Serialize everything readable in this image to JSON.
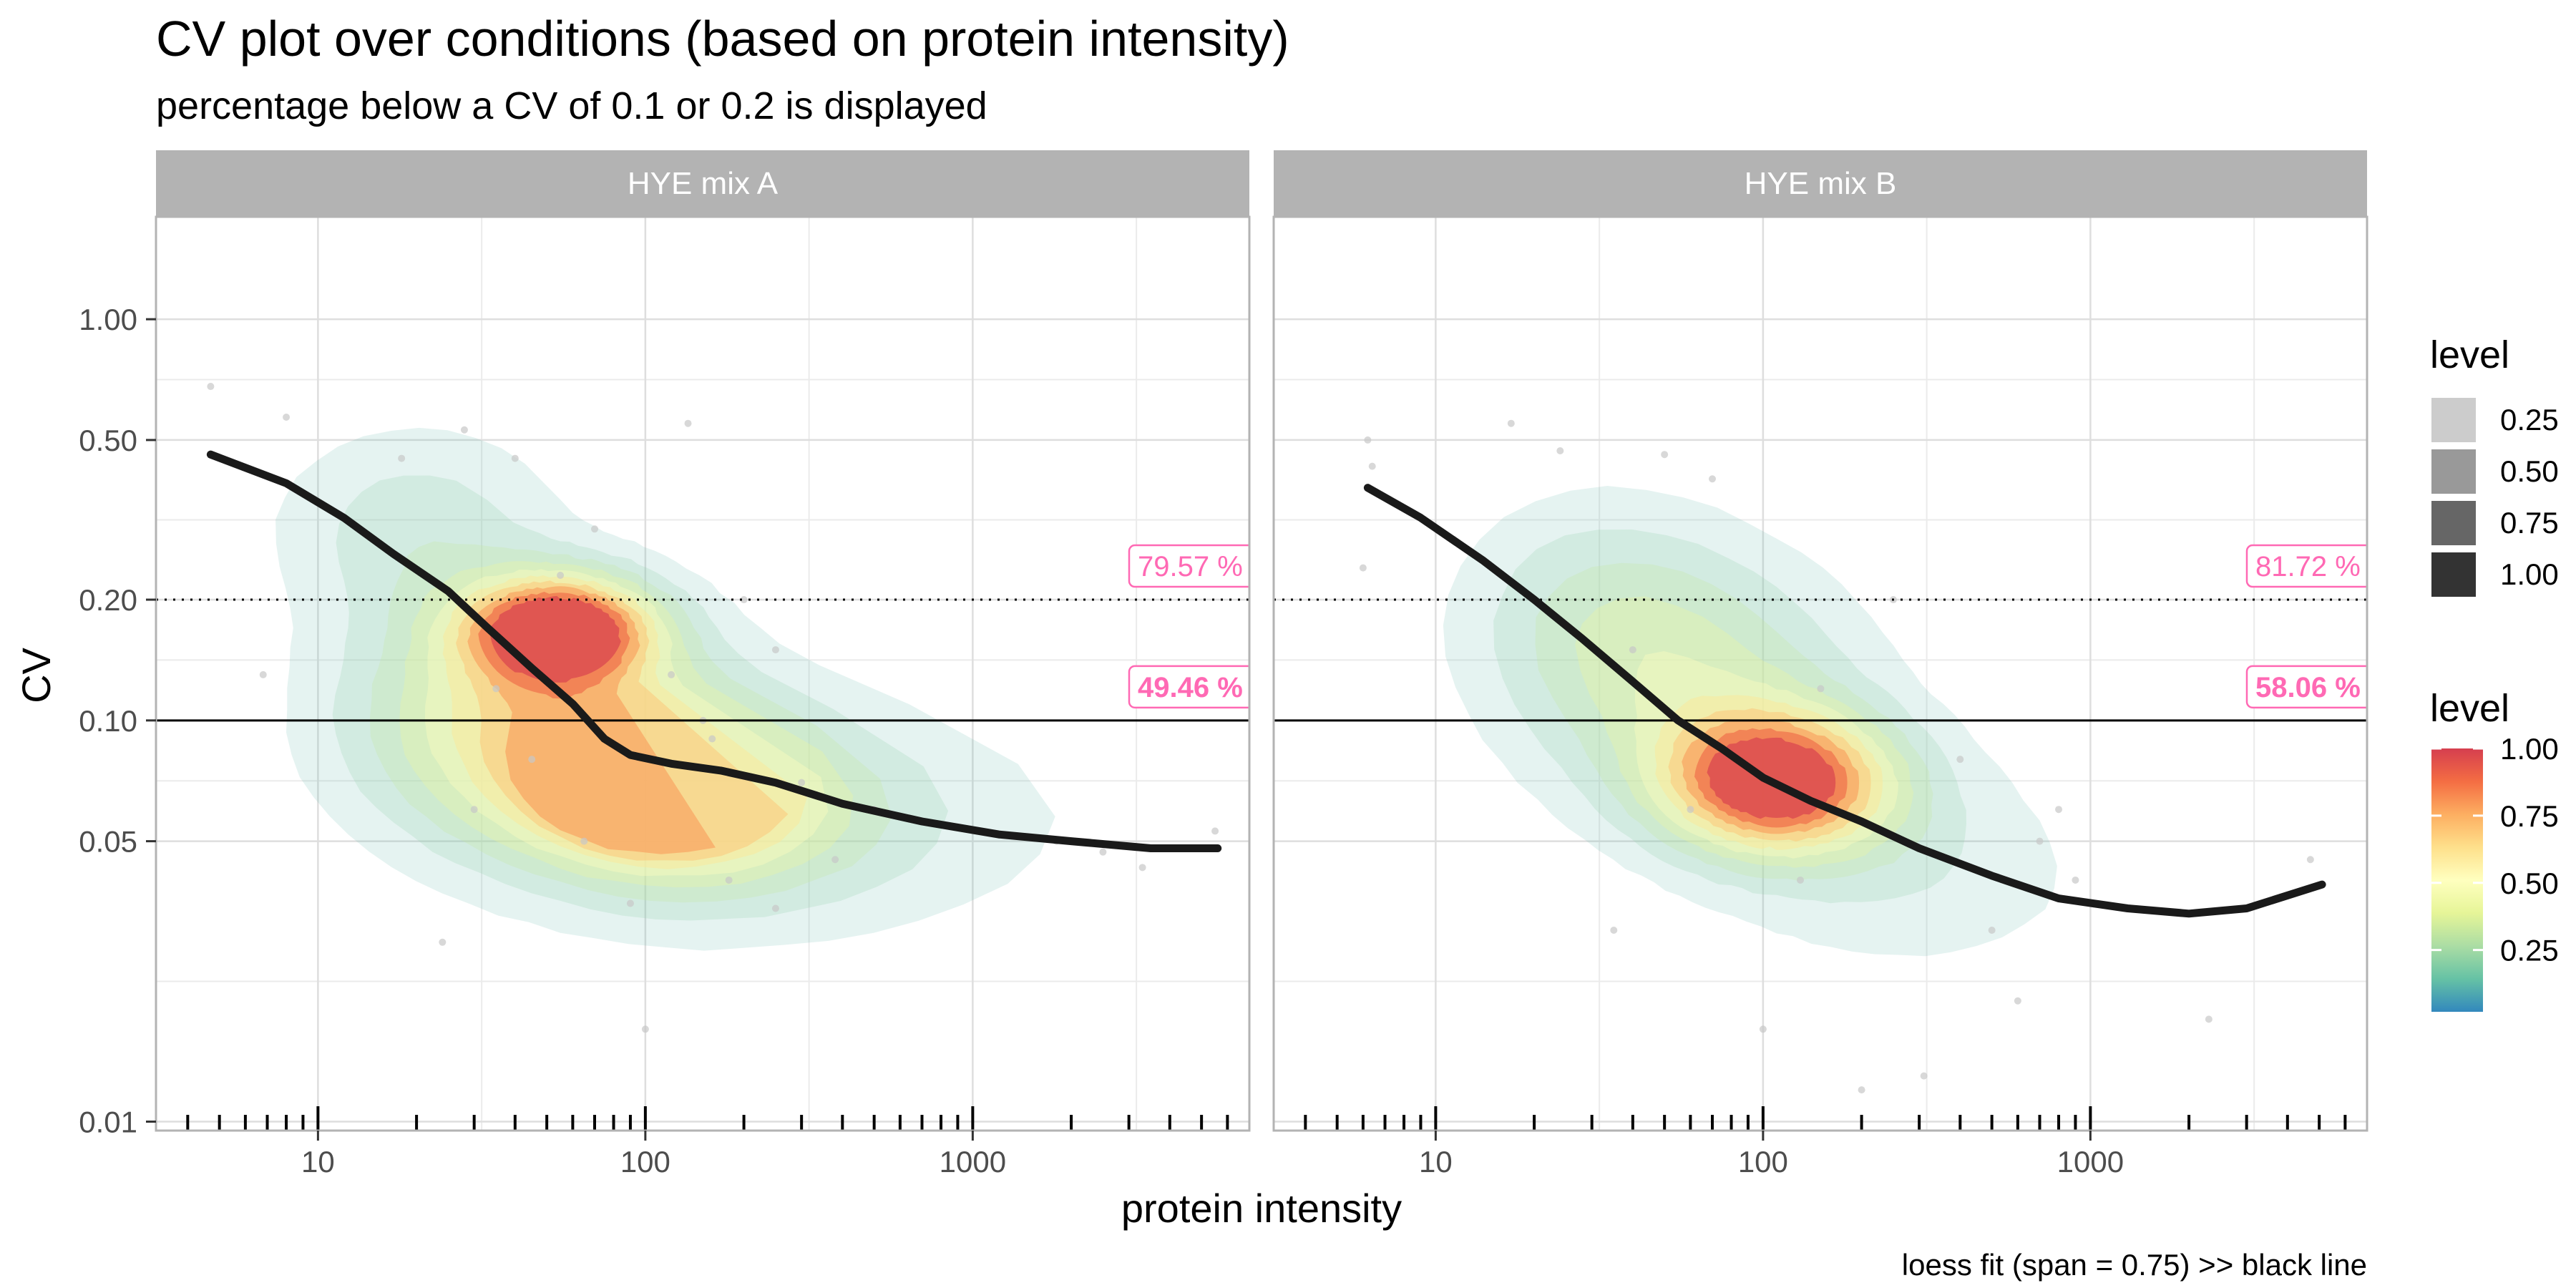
{
  "chart_data": {
    "type": "density-contour",
    "title": "CV plot over conditions (based on protein intensity)",
    "subtitle": "percentage below a CV of 0.1 or 0.2 is displayed",
    "xlabel": "protein intensity",
    "ylabel": "CV",
    "caption": "loess fit (span = 0.75) >> black line",
    "x_scale": "log10",
    "y_scale": "log10",
    "xlim": [
      3.2,
      7000
    ],
    "ylim": [
      0.0095,
      1.8
    ],
    "x_ticks": [
      {
        "value": 10,
        "label": "10"
      },
      {
        "value": 100,
        "label": "100"
      },
      {
        "value": 1000,
        "label": "1000"
      }
    ],
    "y_ticks": [
      {
        "value": 0.01,
        "label": "0.01"
      },
      {
        "value": 0.05,
        "label": "0.05"
      },
      {
        "value": 0.1,
        "label": "0.10"
      },
      {
        "value": 0.2,
        "label": "0.20"
      },
      {
        "value": 0.5,
        "label": "0.50"
      },
      {
        "value": 1.0,
        "label": "1.00"
      }
    ],
    "reference_lines": [
      {
        "cv": 0.2,
        "style": "dotted"
      },
      {
        "cv": 0.1,
        "style": "solid"
      }
    ],
    "facets": [
      {
        "name": "HYE mix A",
        "pct_below_0_2": "79.57 %",
        "pct_below_0_1": "49.46 %",
        "density_peaks": [
          {
            "x": 55,
            "cv": 0.17,
            "sx": 0.2,
            "sy": 0.09,
            "w": 0.55
          },
          {
            "x": 110,
            "cv": 0.068,
            "sx": 0.22,
            "sy": 0.1,
            "w": 0.55
          },
          {
            "x": 45,
            "cv": 0.1,
            "sx": 0.38,
            "sy": 0.2,
            "w": 0.35
          },
          {
            "x": 150,
            "cv": 0.06,
            "sx": 0.42,
            "sy": 0.18,
            "w": 0.28
          },
          {
            "x": 20,
            "cv": 0.3,
            "sx": 0.3,
            "sy": 0.18,
            "w": 0.14
          },
          {
            "x": 900,
            "cv": 0.055,
            "sx": 0.55,
            "sy": 0.22,
            "w": 0.05
          }
        ],
        "loess_fit": [
          {
            "x": 4.7,
            "cv": 0.46
          },
          {
            "x": 8,
            "cv": 0.39
          },
          {
            "x": 12,
            "cv": 0.32
          },
          {
            "x": 17,
            "cv": 0.26
          },
          {
            "x": 25,
            "cv": 0.21
          },
          {
            "x": 33,
            "cv": 0.17
          },
          {
            "x": 45,
            "cv": 0.135
          },
          {
            "x": 60,
            "cv": 0.11
          },
          {
            "x": 75,
            "cv": 0.09
          },
          {
            "x": 90,
            "cv": 0.082
          },
          {
            "x": 120,
            "cv": 0.078
          },
          {
            "x": 170,
            "cv": 0.075
          },
          {
            "x": 250,
            "cv": 0.07
          },
          {
            "x": 400,
            "cv": 0.062
          },
          {
            "x": 700,
            "cv": 0.056
          },
          {
            "x": 1200,
            "cv": 0.052
          },
          {
            "x": 2000,
            "cv": 0.05
          },
          {
            "x": 3500,
            "cv": 0.048
          },
          {
            "x": 5600,
            "cv": 0.048
          }
        ],
        "points": [
          {
            "x": 4.7,
            "cv": 0.68
          },
          {
            "x": 6.8,
            "cv": 0.13
          },
          {
            "x": 8,
            "cv": 0.57
          },
          {
            "x": 28,
            "cv": 0.53
          },
          {
            "x": 135,
            "cv": 0.55
          },
          {
            "x": 24,
            "cv": 0.028
          },
          {
            "x": 100,
            "cv": 0.017
          },
          {
            "x": 1800,
            "cv": 0.05
          },
          {
            "x": 2500,
            "cv": 0.047
          },
          {
            "x": 3300,
            "cv": 0.043
          },
          {
            "x": 5500,
            "cv": 0.053
          },
          {
            "x": 250,
            "cv": 0.15
          },
          {
            "x": 300,
            "cv": 0.07
          },
          {
            "x": 380,
            "cv": 0.045
          },
          {
            "x": 55,
            "cv": 0.23
          },
          {
            "x": 40,
            "cv": 0.45
          },
          {
            "x": 18,
            "cv": 0.45
          },
          {
            "x": 70,
            "cv": 0.3
          },
          {
            "x": 200,
            "cv": 0.2
          },
          {
            "x": 150,
            "cv": 0.1
          },
          {
            "x": 180,
            "cv": 0.04
          },
          {
            "x": 250,
            "cv": 0.034
          },
          {
            "x": 90,
            "cv": 0.035
          },
          {
            "x": 30,
            "cv": 0.06
          },
          {
            "x": 35,
            "cv": 0.12
          },
          {
            "x": 45,
            "cv": 0.08
          },
          {
            "x": 65,
            "cv": 0.05
          },
          {
            "x": 120,
            "cv": 0.13
          },
          {
            "x": 160,
            "cv": 0.09
          },
          {
            "x": 500,
            "cv": 0.06
          }
        ]
      },
      {
        "name": "HYE mix B",
        "pct_below_0_2": "81.72 %",
        "pct_below_0_1": "58.06 %",
        "density_peaks": [
          {
            "x": 110,
            "cv": 0.07,
            "sx": 0.24,
            "sy": 0.12,
            "w": 0.8
          },
          {
            "x": 60,
            "cv": 0.12,
            "sx": 0.36,
            "sy": 0.22,
            "w": 0.32
          },
          {
            "x": 30,
            "cv": 0.2,
            "sx": 0.3,
            "sy": 0.2,
            "w": 0.16
          },
          {
            "x": 250,
            "cv": 0.045,
            "sx": 0.38,
            "sy": 0.2,
            "w": 0.15
          },
          {
            "x": 1800,
            "cv": 0.03,
            "sx": 0.4,
            "sy": 0.2,
            "w": 0.03
          }
        ],
        "loess_fit": [
          {
            "x": 6.2,
            "cv": 0.38
          },
          {
            "x": 9,
            "cv": 0.32
          },
          {
            "x": 14,
            "cv": 0.25
          },
          {
            "x": 20,
            "cv": 0.2
          },
          {
            "x": 28,
            "cv": 0.16
          },
          {
            "x": 40,
            "cv": 0.125
          },
          {
            "x": 55,
            "cv": 0.1
          },
          {
            "x": 75,
            "cv": 0.085
          },
          {
            "x": 100,
            "cv": 0.072
          },
          {
            "x": 140,
            "cv": 0.063
          },
          {
            "x": 200,
            "cv": 0.056
          },
          {
            "x": 300,
            "cv": 0.048
          },
          {
            "x": 500,
            "cv": 0.041
          },
          {
            "x": 800,
            "cv": 0.036
          },
          {
            "x": 1300,
            "cv": 0.034
          },
          {
            "x": 2000,
            "cv": 0.033
          },
          {
            "x": 3000,
            "cv": 0.034
          },
          {
            "x": 5100,
            "cv": 0.039
          }
        ],
        "points": [
          {
            "x": 6.2,
            "cv": 0.5
          },
          {
            "x": 6.4,
            "cv": 0.43
          },
          {
            "x": 6,
            "cv": 0.24
          },
          {
            "x": 17,
            "cv": 0.55
          },
          {
            "x": 24,
            "cv": 0.47
          },
          {
            "x": 50,
            "cv": 0.46
          },
          {
            "x": 35,
            "cv": 0.03
          },
          {
            "x": 100,
            "cv": 0.017
          },
          {
            "x": 200,
            "cv": 0.012
          },
          {
            "x": 310,
            "cv": 0.013
          },
          {
            "x": 600,
            "cv": 0.02
          },
          {
            "x": 900,
            "cv": 0.04
          },
          {
            "x": 2300,
            "cv": 0.018
          },
          {
            "x": 4700,
            "cv": 0.045
          },
          {
            "x": 70,
            "cv": 0.4
          },
          {
            "x": 250,
            "cv": 0.2
          },
          {
            "x": 700,
            "cv": 0.05
          },
          {
            "x": 800,
            "cv": 0.06
          },
          {
            "x": 150,
            "cv": 0.12
          },
          {
            "x": 60,
            "cv": 0.06
          },
          {
            "x": 40,
            "cv": 0.15
          },
          {
            "x": 130,
            "cv": 0.04
          },
          {
            "x": 400,
            "cv": 0.08
          },
          {
            "x": 500,
            "cv": 0.03
          }
        ]
      }
    ],
    "legend_alpha": {
      "title": "level",
      "entries": [
        {
          "label": "0.25",
          "alpha": 0.25
        },
        {
          "label": "0.50",
          "alpha": 0.5
        },
        {
          "label": "0.75",
          "alpha": 0.75
        },
        {
          "label": "1.00",
          "alpha": 1.0
        }
      ]
    },
    "legend_fill": {
      "title": "level",
      "ticks": [
        {
          "value": 0.25,
          "label": "0.25"
        },
        {
          "value": 0.5,
          "label": "0.50"
        },
        {
          "value": 0.75,
          "label": "0.75"
        },
        {
          "value": 1.0,
          "label": "1.00"
        }
      ],
      "palette": [
        "#3288bd",
        "#66c2a5",
        "#abdda4",
        "#e6f598",
        "#ffffbf",
        "#fee08b",
        "#fdae61",
        "#f46d43",
        "#d53e4f"
      ]
    },
    "grid": true,
    "legend_position": "right"
  }
}
